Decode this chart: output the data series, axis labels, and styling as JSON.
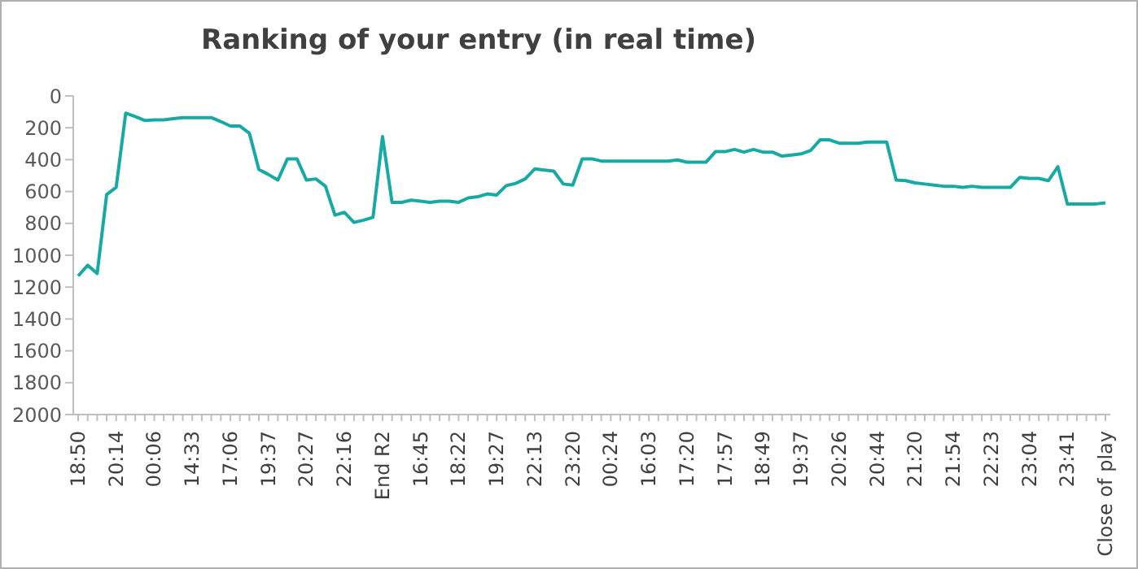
{
  "chart_data": {
    "type": "line",
    "title": "Ranking of your entry (in real time)",
    "categories": [
      "18:50",
      null,
      null,
      null,
      "20:14",
      null,
      null,
      null,
      "00:06",
      null,
      null,
      null,
      "14:33",
      null,
      null,
      null,
      "17:06",
      null,
      null,
      null,
      "19:37",
      null,
      null,
      null,
      "20:27",
      null,
      null,
      null,
      "22:16",
      null,
      null,
      null,
      "End R2",
      null,
      null,
      null,
      "16:45",
      null,
      null,
      null,
      "18:22",
      null,
      null,
      null,
      "19:27",
      null,
      null,
      null,
      "22:13",
      null,
      null,
      null,
      "23:20",
      null,
      null,
      null,
      "00:24",
      null,
      null,
      null,
      "16:03",
      null,
      null,
      null,
      "17:20",
      null,
      null,
      null,
      "17:57",
      null,
      null,
      null,
      "18:49",
      null,
      null,
      null,
      "19:37",
      null,
      null,
      null,
      "20:26",
      null,
      null,
      null,
      "20:44",
      null,
      null,
      null,
      "21:20",
      null,
      null,
      null,
      "21:54",
      null,
      null,
      null,
      "22:23",
      null,
      null,
      null,
      "23:04",
      null,
      null,
      null,
      "23:41",
      null,
      null,
      null,
      "Close of play"
    ],
    "series": [
      {
        "color": "#17aaa4",
        "values": [
          1130,
          1063,
          1115,
          619,
          573,
          108,
          129,
          154,
          150,
          150,
          143,
          136,
          136,
          136,
          136,
          161,
          189,
          189,
          234,
          462,
          493,
          528,
          395,
          395,
          528,
          521,
          567,
          748,
          731,
          794,
          780,
          762,
          255,
          668,
          668,
          654,
          661,
          668,
          661,
          661,
          668,
          640,
          633,
          615,
          622,
          563,
          549,
          521,
          458,
          465,
          472,
          553,
          560,
          395,
          395,
          409,
          409,
          409,
          409,
          409,
          409,
          409,
          409,
          402,
          416,
          416,
          416,
          350,
          350,
          336,
          353,
          336,
          353,
          353,
          378,
          371,
          364,
          343,
          276,
          276,
          297,
          297,
          297,
          290,
          290,
          290,
          528,
          532,
          546,
          553,
          560,
          567,
          567,
          574,
          567,
          574,
          574,
          574,
          574,
          511,
          518,
          518,
          532,
          444,
          678,
          678,
          678,
          678,
          671
        ]
      }
    ],
    "ylim": [
      2000,
      0
    ],
    "yticks": [
      0,
      200,
      400,
      600,
      800,
      1000,
      1200,
      1400,
      1600,
      1800,
      2000
    ],
    "grid": false,
    "legend": false,
    "marker": "none",
    "line_style": "solid"
  }
}
